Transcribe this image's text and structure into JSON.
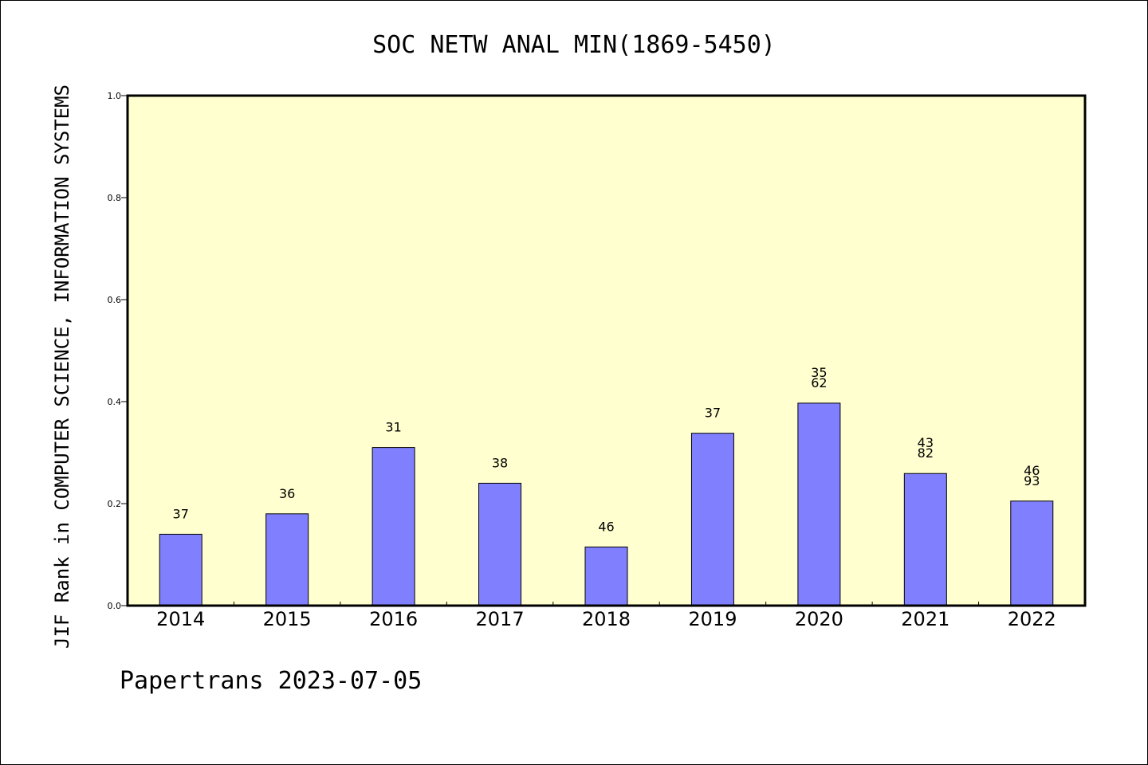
{
  "chart_data": {
    "type": "bar",
    "title": "SOC NETW ANAL MIN(1869-5450)",
    "ylabel": "JIF Rank in COMPUTER SCIENCE, INFORMATION SYSTEMS",
    "xlabel": "",
    "categories": [
      "2014",
      "2015",
      "2016",
      "2017",
      "2018",
      "2019",
      "2020",
      "2021",
      "2022"
    ],
    "values": [
      0.14,
      0.18,
      0.31,
      0.24,
      0.115,
      0.338,
      0.397,
      0.259,
      0.205
    ],
    "bar_labels": [
      [
        "37"
      ],
      [
        "36"
      ],
      [
        "31"
      ],
      [
        "38"
      ],
      [
        "46"
      ],
      [
        "37"
      ],
      [
        "35",
        "62"
      ],
      [
        "43",
        "82"
      ],
      [
        "46",
        "93"
      ]
    ],
    "ylim": [
      0,
      1
    ],
    "yticks": [
      "0.0",
      "0.2",
      "0.4",
      "0.6",
      "0.8",
      "1.0"
    ],
    "grid": false,
    "colors": {
      "bar": "#8080ff",
      "plot_background": "#ffffd0",
      "axis": "#000000"
    }
  },
  "footer": "Papertrans 2023-07-05"
}
